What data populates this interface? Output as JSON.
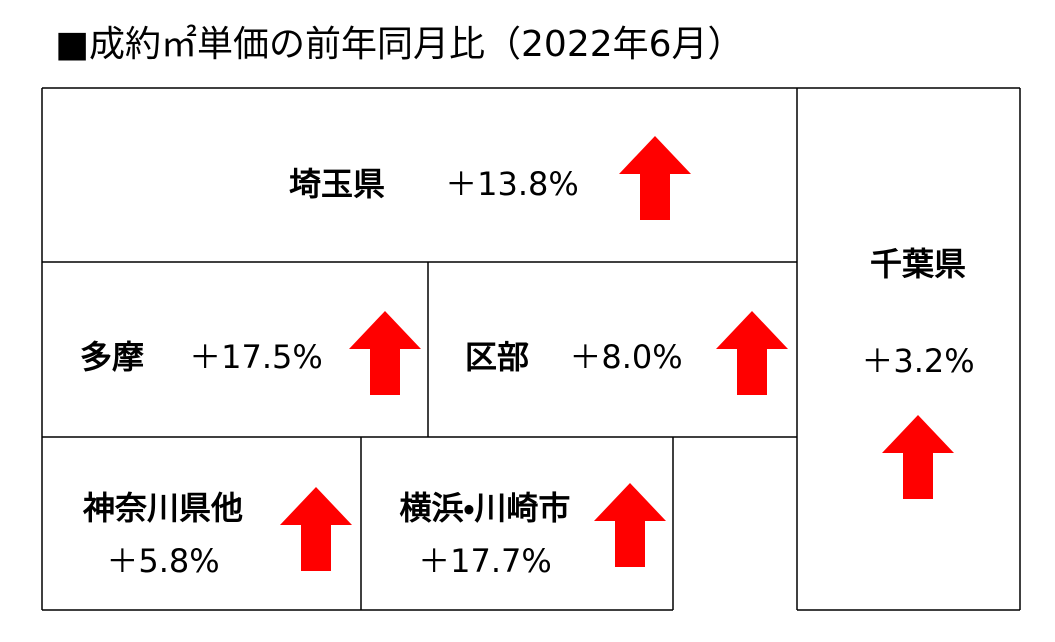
{
  "title": "■成約㎡単価の前年同月比（2022年6月）",
  "regions": [
    {
      "name": "埼玉県",
      "change": "＋13.8%"
    },
    {
      "name": "千葉県",
      "change": "＋3.2%"
    },
    {
      "name": "多摩",
      "change": "＋17.5%"
    },
    {
      "name": "区部",
      "change": "＋8.0%"
    },
    {
      "name": "神奈川県他",
      "change": "＋5.8%"
    },
    {
      "name": "横浜・川崎市",
      "change": "＋17.7%"
    }
  ]
}
